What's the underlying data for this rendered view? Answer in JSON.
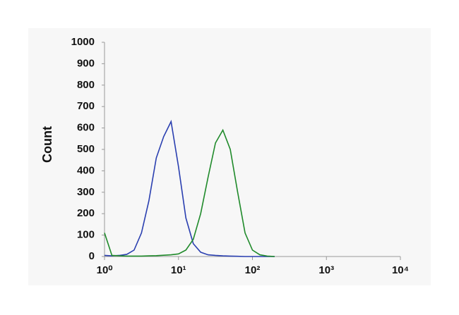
{
  "chart_data": {
    "type": "line",
    "y_label": "Count",
    "x": [
      1,
      1.26,
      1.58,
      2,
      2.51,
      3.16,
      3.98,
      5.01,
      6.31,
      7.94,
      10,
      12.59,
      15.85,
      19.95,
      25.12,
      31.62,
      39.81,
      50.12,
      63.1,
      79.43,
      100,
      125.9,
      158.5,
      199.5
    ],
    "series": [
      {
        "color": "#2a3fb0",
        "values": [
          5,
          3,
          5,
          10,
          30,
          110,
          260,
          460,
          560,
          630,
          420,
          180,
          60,
          20,
          8,
          5,
          3,
          2,
          1,
          0,
          0,
          0,
          0,
          0
        ]
      },
      {
        "color": "#1f8a2a",
        "values": [
          110,
          5,
          3,
          2,
          2,
          2,
          3,
          4,
          6,
          8,
          12,
          30,
          80,
          200,
          370,
          530,
          590,
          500,
          300,
          110,
          30,
          8,
          2,
          0
        ]
      }
    ],
    "xscale": "log",
    "xlim": [
      1,
      10000
    ],
    "xticks": [
      {
        "value": 1,
        "label": "10⁰"
      },
      {
        "value": 10,
        "label": "10¹"
      },
      {
        "value": 100,
        "label": "10²"
      },
      {
        "value": 1000,
        "label": "10³"
      },
      {
        "value": 10000,
        "label": "10⁴"
      }
    ],
    "ylim": [
      0,
      1000
    ],
    "yticks": [
      0,
      100,
      200,
      300,
      400,
      500,
      600,
      700,
      800,
      900,
      1000
    ]
  }
}
